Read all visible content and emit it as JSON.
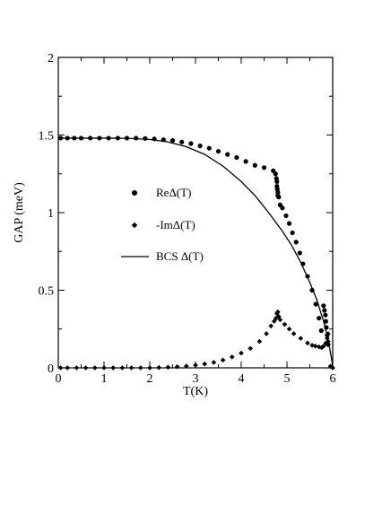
{
  "chart_data": {
    "type": "scatter",
    "title": "",
    "xlabel": "T(K)",
    "ylabel": "GAP (meV)",
    "xlim": [
      0,
      6
    ],
    "ylim": [
      0,
      2
    ],
    "xticks": [
      0,
      1,
      2,
      3,
      4,
      5,
      6
    ],
    "yticks": [
      0,
      0.5,
      1,
      1.5,
      2
    ],
    "ytick_labels": [
      "0",
      "0.5",
      "1",
      "1.5",
      "2"
    ],
    "grid": false,
    "legend_position": "center-left",
    "series": [
      {
        "name": "ReΔ(T)",
        "marker": "circle",
        "color": "#000000",
        "points": [
          [
            0.05,
            1.48
          ],
          [
            0.2,
            1.48
          ],
          [
            0.35,
            1.48
          ],
          [
            0.5,
            1.48
          ],
          [
            0.7,
            1.48
          ],
          [
            0.9,
            1.48
          ],
          [
            1.1,
            1.48
          ],
          [
            1.3,
            1.48
          ],
          [
            1.5,
            1.48
          ],
          [
            1.7,
            1.48
          ],
          [
            1.9,
            1.478
          ],
          [
            2.1,
            1.475
          ],
          [
            2.3,
            1.47
          ],
          [
            2.5,
            1.465
          ],
          [
            2.7,
            1.455
          ],
          [
            2.9,
            1.445
          ],
          [
            3.1,
            1.43
          ],
          [
            3.3,
            1.415
          ],
          [
            3.5,
            1.395
          ],
          [
            3.7,
            1.375
          ],
          [
            3.9,
            1.355
          ],
          [
            4.1,
            1.33
          ],
          [
            4.3,
            1.305
          ],
          [
            4.5,
            1.29
          ],
          [
            4.7,
            1.27
          ],
          [
            4.75,
            1.25
          ],
          [
            4.77,
            1.22
          ],
          [
            4.78,
            1.2
          ],
          [
            4.78,
            1.17
          ],
          [
            4.79,
            1.15
          ],
          [
            4.8,
            1.13
          ],
          [
            4.8,
            1.11
          ],
          [
            4.82,
            1.1
          ],
          [
            4.85,
            1.05
          ],
          [
            4.9,
            1.03
          ],
          [
            4.98,
            0.98
          ],
          [
            5.05,
            0.93
          ],
          [
            5.12,
            0.87
          ],
          [
            5.2,
            0.81
          ],
          [
            5.28,
            0.74
          ],
          [
            5.35,
            0.67
          ],
          [
            5.45,
            0.59
          ],
          [
            5.55,
            0.5
          ],
          [
            5.63,
            0.41
          ],
          [
            5.7,
            0.32
          ],
          [
            5.75,
            0.24
          ],
          [
            5.8,
            0.4
          ],
          [
            5.82,
            0.37
          ],
          [
            5.84,
            0.34
          ],
          [
            5.85,
            0.3
          ],
          [
            5.86,
            0.26
          ],
          [
            5.88,
            0.21
          ],
          [
            5.9,
            0.15
          ]
        ]
      },
      {
        "name": "-ImΔ(T)",
        "marker": "diamond",
        "color": "#000000",
        "points": [
          [
            0.05,
            0.0
          ],
          [
            0.2,
            0.0
          ],
          [
            0.4,
            0.0
          ],
          [
            0.6,
            0.0
          ],
          [
            0.8,
            0.0
          ],
          [
            1.0,
            0.0
          ],
          [
            1.2,
            0.0
          ],
          [
            1.4,
            0.0
          ],
          [
            1.6,
            0.0
          ],
          [
            1.8,
            0.0
          ],
          [
            2.0,
            0.0
          ],
          [
            2.2,
            0.002
          ],
          [
            2.4,
            0.004
          ],
          [
            2.6,
            0.007
          ],
          [
            2.8,
            0.011
          ],
          [
            3.0,
            0.017
          ],
          [
            3.2,
            0.025
          ],
          [
            3.4,
            0.035
          ],
          [
            3.6,
            0.05
          ],
          [
            3.8,
            0.07
          ],
          [
            4.0,
            0.095
          ],
          [
            4.2,
            0.125
          ],
          [
            4.4,
            0.17
          ],
          [
            4.55,
            0.22
          ],
          [
            4.65,
            0.27
          ],
          [
            4.72,
            0.3
          ],
          [
            4.76,
            0.32
          ],
          [
            4.78,
            0.35
          ],
          [
            4.8,
            0.36
          ],
          [
            4.82,
            0.33
          ],
          [
            4.85,
            0.31
          ],
          [
            4.95,
            0.28
          ],
          [
            5.05,
            0.25
          ],
          [
            5.15,
            0.22
          ],
          [
            5.3,
            0.19
          ],
          [
            5.45,
            0.16
          ],
          [
            5.55,
            0.145
          ],
          [
            5.62,
            0.14
          ],
          [
            5.7,
            0.135
          ],
          [
            5.76,
            0.13
          ],
          [
            5.8,
            0.14
          ],
          [
            5.85,
            0.16
          ],
          [
            5.88,
            0.19
          ],
          [
            5.9,
            0.22
          ],
          [
            5.9,
            0.17
          ],
          [
            5.95,
            0.01
          ],
          [
            6.0,
            0.0
          ]
        ]
      },
      {
        "name": "BCS Δ(T)",
        "marker": "line",
        "color": "#000000",
        "points": [
          [
            0.0,
            1.48
          ],
          [
            1.0,
            1.48
          ],
          [
            1.5,
            1.479
          ],
          [
            2.0,
            1.472
          ],
          [
            2.4,
            1.455
          ],
          [
            2.8,
            1.425
          ],
          [
            3.2,
            1.375
          ],
          [
            3.6,
            1.3
          ],
          [
            4.0,
            1.2
          ],
          [
            4.3,
            1.11
          ],
          [
            4.6,
            1.0
          ],
          [
            4.9,
            0.88
          ],
          [
            5.1,
            0.79
          ],
          [
            5.3,
            0.68
          ],
          [
            5.5,
            0.55
          ],
          [
            5.65,
            0.44
          ],
          [
            5.8,
            0.3
          ],
          [
            5.9,
            0.18
          ],
          [
            5.95,
            0.1
          ],
          [
            5.98,
            0.05
          ],
          [
            6.0,
            0.0
          ]
        ]
      }
    ]
  }
}
